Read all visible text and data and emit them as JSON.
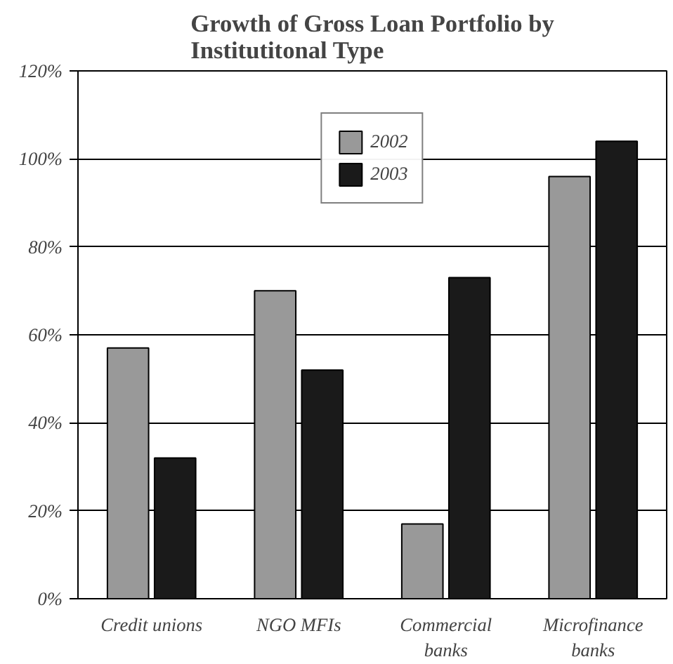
{
  "chart_data": {
    "type": "bar",
    "title": "Growth of Gross Loan Portfolio by Institutitonal Type",
    "categories": [
      "Credit unions",
      "NGO MFIs",
      "Commercial banks",
      "Microfinance banks"
    ],
    "series": [
      {
        "name": "2002",
        "color": "#999999",
        "values": [
          57,
          70,
          17,
          96
        ]
      },
      {
        "name": "2003",
        "color": "#1a1a1a",
        "values": [
          32,
          52,
          73,
          104
        ]
      }
    ],
    "ylim": [
      0,
      120
    ],
    "yticks": [
      {
        "value": 0,
        "label": "0%"
      },
      {
        "value": 20,
        "label": "20%"
      },
      {
        "value": 40,
        "label": "40%"
      },
      {
        "value": 60,
        "label": "60%"
      },
      {
        "value": 80,
        "label": "80%"
      },
      {
        "value": 100,
        "label": "100%"
      },
      {
        "value": 120,
        "label": "120%"
      }
    ],
    "grid": "y",
    "legend": "top"
  }
}
